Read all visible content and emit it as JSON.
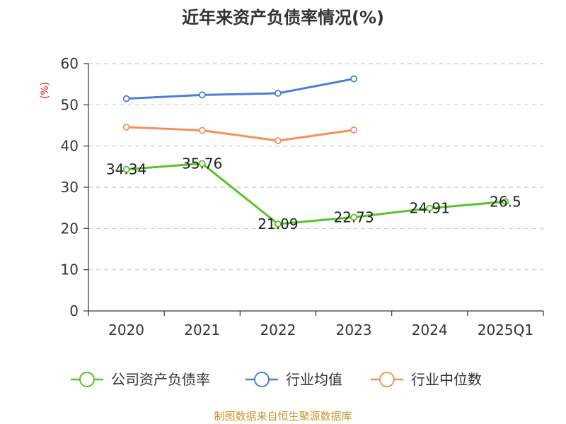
{
  "chart_data": {
    "type": "line",
    "title": "近年来资产负债率情况(%)",
    "ylabel": "(%)",
    "xlabel": "",
    "categories": [
      "2020",
      "2021",
      "2022",
      "2023",
      "2024",
      "2025Q1"
    ],
    "ylim": [
      0,
      60
    ],
    "yticks": [
      0,
      10,
      20,
      30,
      40,
      50,
      60
    ],
    "grid": true,
    "legend_position": "bottom",
    "series": [
      {
        "name": "公司资产负债率",
        "color": "#5ac229",
        "values": [
          34.34,
          35.76,
          21.09,
          22.73,
          24.91,
          26.5
        ],
        "labels": [
          "34.34",
          "35.76",
          "21.09",
          "22.73",
          "24.91",
          "26.5"
        ]
      },
      {
        "name": "行业均值",
        "color": "#4a7fd6",
        "values": [
          51.5,
          52.4,
          52.8,
          56.3,
          null,
          null
        ]
      },
      {
        "name": "行业中位数",
        "color": "#f5905a",
        "values": [
          44.6,
          43.8,
          41.3,
          43.9,
          null,
          null
        ]
      }
    ]
  },
  "source_note": "制图数据来自恒生聚源数据库"
}
